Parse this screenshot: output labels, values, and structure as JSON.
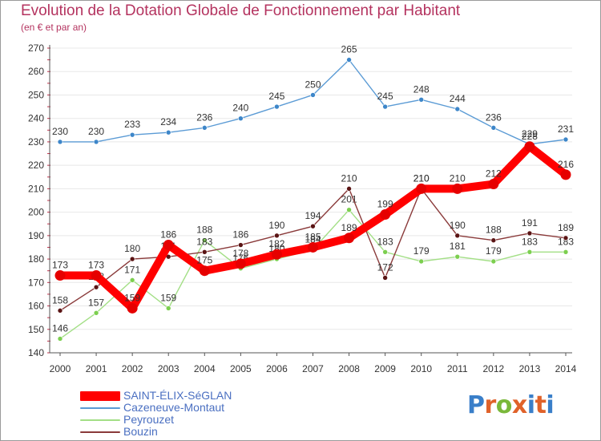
{
  "header": {
    "title": "Evolution de la Dotation Globale de Fonctionnement par Habitant",
    "subtitle": "(en € et par an)"
  },
  "logo": {
    "text": "Proxiti",
    "letter_colors": [
      "#3a7fc9",
      "#e0622a",
      "#7ab83a",
      "#e0622a",
      "#3a7fc9",
      "#e0622a"
    ]
  },
  "colors": {
    "title": "#b4335f",
    "legend_text": "#4a6fc1",
    "axis": "#555555",
    "grid": "#e8e8e8",
    "label": "#333333"
  },
  "chart_data": {
    "type": "line",
    "title": "Evolution de la Dotation Globale de Fonctionnement par Habitant",
    "subtitle": "(en € et par an)",
    "x": [
      "2000",
      "2001",
      "2002",
      "2003",
      "2004",
      "2005",
      "2006",
      "2007",
      "2008",
      "2009",
      "2010",
      "2011",
      "2012",
      "2013",
      "2014"
    ],
    "ylim": [
      140,
      270
    ],
    "yticks": [
      "140",
      "150",
      "160",
      "170",
      "180",
      "190",
      "200",
      "210",
      "220",
      "230",
      "240",
      "250",
      "260",
      "270"
    ],
    "grid": true,
    "legend_position": "bottom-left",
    "series": [
      {
        "name": "Cazeneuve-Montaut",
        "color": "#5b9bd5",
        "point_color": "#3d86c9",
        "values": [
          230,
          230,
          233,
          234,
          236,
          240,
          245,
          250,
          265,
          245,
          248,
          244,
          236,
          229,
          231
        ],
        "labels": [
          "230",
          "230",
          "233",
          "234",
          "236",
          "240",
          "245",
          "250",
          "265",
          "245",
          "248",
          "244",
          "236",
          "229",
          "231"
        ]
      },
      {
        "name": "Peyrouzet",
        "color": "#a3df86",
        "point_color": "#7ccf4f",
        "values": [
          146,
          157,
          171,
          159,
          188,
          176,
          180,
          184,
          201,
          183,
          179,
          181,
          179,
          183,
          183
        ],
        "labels": [
          "146",
          "157",
          "171",
          "159",
          "188",
          "176",
          "180",
          "184",
          "201",
          "183",
          "179",
          "181",
          "179",
          "183",
          "183"
        ]
      },
      {
        "name": "Bouzin",
        "color": "#8a3a3a",
        "point_color": "#5a1414",
        "values": [
          158,
          168,
          180,
          181,
          183,
          186,
          190,
          194,
          210,
          172,
          210,
          190,
          188,
          191,
          189
        ],
        "labels": [
          "158",
          "168",
          "180",
          "181",
          "183",
          "186",
          "190",
          "194",
          "210",
          "172",
          "210",
          "190",
          "188",
          "191",
          "189"
        ]
      },
      {
        "name": "SAINT-ÉLIX-SéGLAN",
        "color": "#ff0000",
        "point_color": "#e60000",
        "values": [
          173,
          173,
          159,
          186,
          175,
          178,
          182,
          185,
          189,
          199,
          210,
          210,
          212,
          228,
          216
        ],
        "labels": [
          "173",
          "173",
          "159",
          "186",
          "175",
          "178",
          "182",
          "185",
          "189",
          "199",
          "210",
          "210",
          "212",
          "228",
          "216"
        ]
      }
    ],
    "legend": [
      "SAINT-ÉLIX-SéGLAN",
      "Cazeneuve-Montaut",
      "Peyrouzet",
      "Bouzin"
    ]
  }
}
